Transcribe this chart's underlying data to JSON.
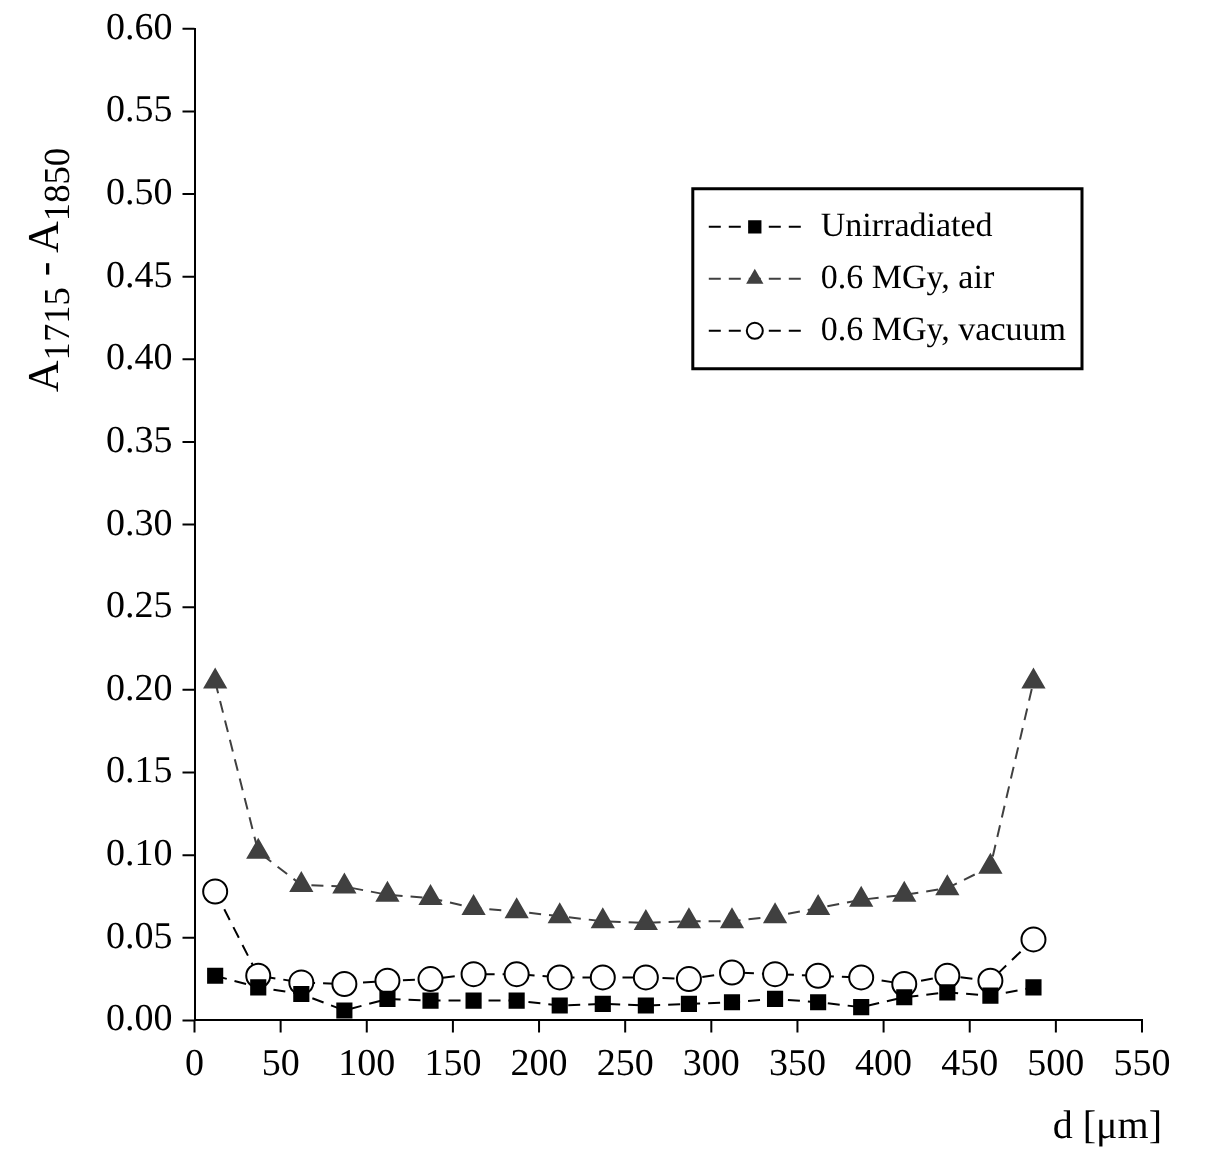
{
  "chart_data": {
    "type": "line",
    "xlabel": "d [μm]",
    "ylabel": "A$_{1715}$ - A$_{1850}$",
    "x": [
      12,
      37,
      62,
      87,
      112,
      137,
      162,
      187,
      212,
      237,
      262,
      287,
      312,
      337,
      362,
      387,
      412,
      437,
      462,
      487
    ],
    "series": [
      {
        "name": "Unirradiated",
        "color": "#000000",
        "marker": "square",
        "values": [
          0.027,
          0.02,
          0.016,
          0.006,
          0.013,
          0.012,
          0.012,
          0.012,
          0.009,
          0.01,
          0.009,
          0.01,
          0.011,
          0.013,
          0.011,
          0.008,
          0.014,
          0.017,
          0.015,
          0.02
        ]
      },
      {
        "name": "0.6 MGy, air",
        "color": "#404040",
        "marker": "triangle",
        "values": [
          0.205,
          0.102,
          0.082,
          0.081,
          0.076,
          0.074,
          0.068,
          0.066,
          0.063,
          0.06,
          0.059,
          0.06,
          0.06,
          0.063,
          0.068,
          0.073,
          0.076,
          0.08,
          0.093,
          0.205
        ]
      },
      {
        "name": "0.6 MGy, vacuum",
        "color": "#000000",
        "marker": "circle",
        "values": [
          0.078,
          0.027,
          0.023,
          0.022,
          0.024,
          0.025,
          0.028,
          0.028,
          0.026,
          0.026,
          0.026,
          0.025,
          0.029,
          0.028,
          0.027,
          0.026,
          0.022,
          0.027,
          0.024,
          0.049
        ]
      }
    ],
    "xlim": [
      0,
      550
    ],
    "xticks": [
      0,
      50,
      100,
      150,
      200,
      250,
      300,
      350,
      400,
      450,
      500,
      550
    ],
    "ylim": [
      0,
      0.6
    ],
    "yticks": [
      {
        "value": 0,
        "label": "0.00"
      },
      0.05,
      {
        "value": 0.1,
        "label": "0.10"
      },
      0.15,
      {
        "value": 0.2,
        "label": "0.20"
      },
      0.25,
      {
        "value": 0.3,
        "label": "0.30"
      },
      0.35,
      {
        "value": 0.4,
        "label": "0.40"
      },
      0.45,
      {
        "value": 0.5,
        "label": "0.50"
      },
      0.55,
      {
        "value": 0.6,
        "label": "0.60"
      }
    ],
    "grid": false,
    "legend": "top right",
    "line_style": "dashed"
  }
}
